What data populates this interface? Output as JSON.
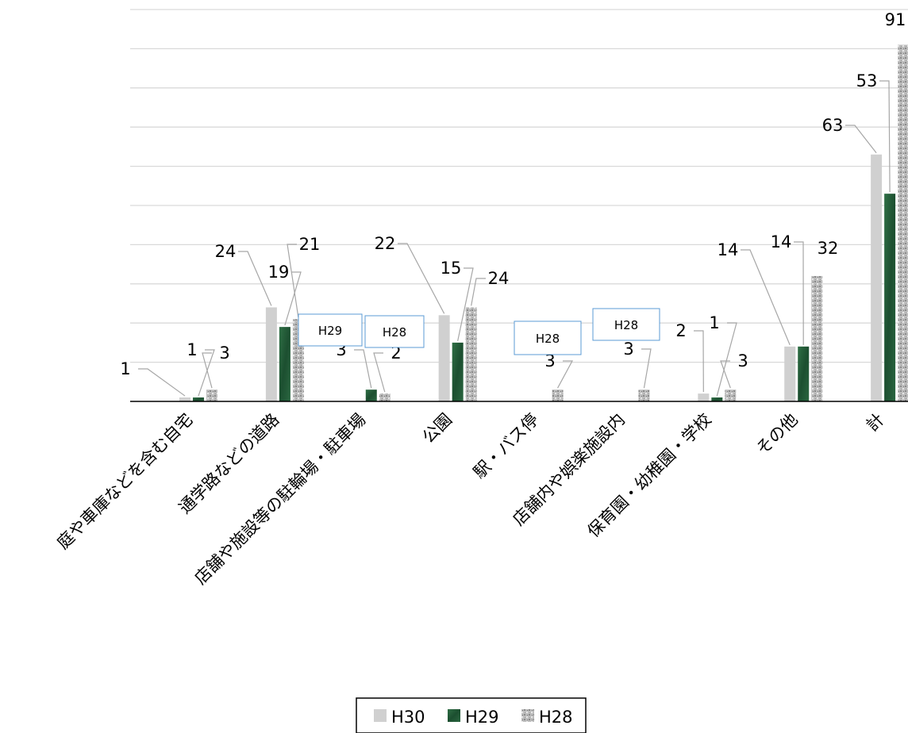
{
  "chart_data": {
    "type": "bar",
    "title": "",
    "xlabel": "",
    "ylabel": "",
    "ylim": [
      0,
      100
    ],
    "grid": true,
    "legend_position": "bottom",
    "categories": [
      "庭や車庫などを含む自宅",
      "通学路などの道路",
      "店舗や施設等の駐輪場・駐車場",
      "公園",
      "駅・バス停",
      "店舗内や娯楽施設内",
      "保育園・幼稚園・学校",
      "その他",
      "計"
    ],
    "series": [
      {
        "name": "H30",
        "values": [
          1,
          24,
          0,
          22,
          0,
          0,
          2,
          14,
          63
        ],
        "labels": [
          "1",
          "24",
          "",
          "22",
          "",
          "",
          "2",
          "14",
          "63"
        ],
        "color": "#d0d0d0"
      },
      {
        "name": "H29",
        "values": [
          1,
          19,
          3,
          15,
          0,
          0,
          1,
          14,
          53
        ],
        "labels": [
          "1",
          "19",
          "3",
          "15",
          "",
          "",
          "1",
          "14",
          "53"
        ],
        "color": "#215a36"
      },
      {
        "name": "H28",
        "values": [
          3,
          21,
          2,
          24,
          3,
          3,
          3,
          32,
          91
        ],
        "labels": [
          "3",
          "21",
          "2",
          "24",
          "3",
          "3",
          "3",
          "32",
          "91"
        ],
        "color": "#b3b3b3"
      }
    ],
    "callouts": [
      "H29",
      "H28",
      "H28",
      "H28"
    ]
  }
}
